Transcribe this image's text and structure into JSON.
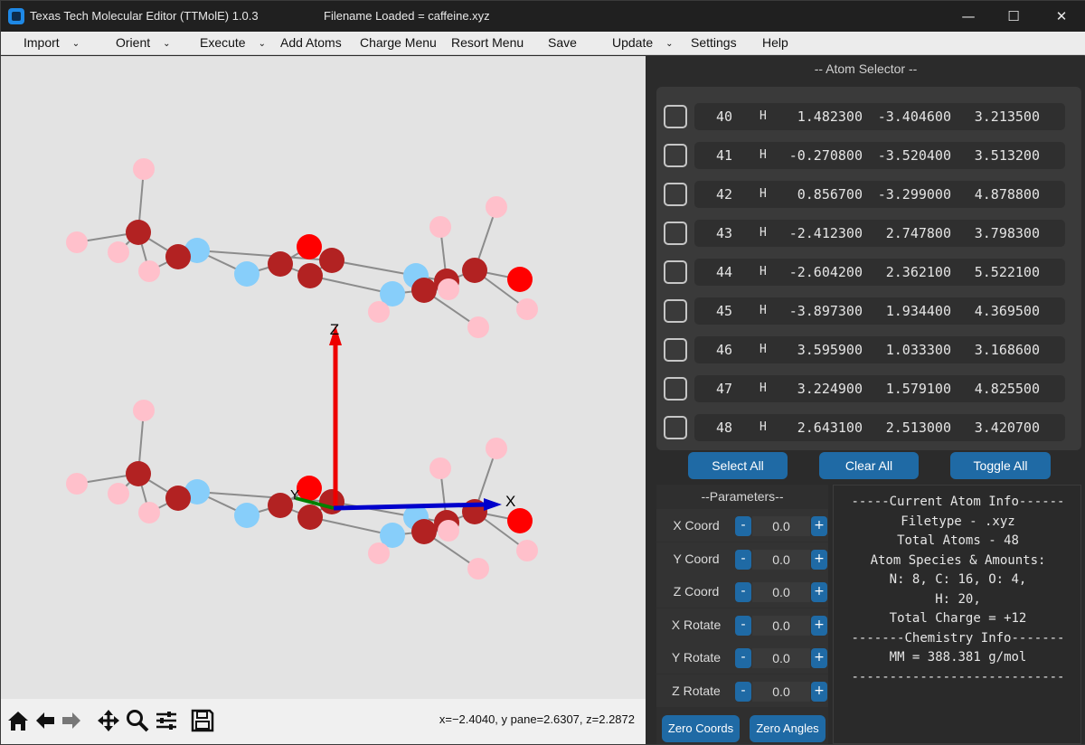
{
  "window": {
    "title": "Texas Tech Molecular Editor (TTMolE) 1.0.3",
    "filename": "Filename Loaded = caffeine.xyz",
    "controls": [
      "—",
      "☐",
      "✕"
    ]
  },
  "menu": [
    {
      "label": "Import",
      "caret": true
    },
    {
      "label": "Orient",
      "caret": true
    },
    {
      "label": "Execute",
      "caret": true
    },
    {
      "label": "Add Atoms",
      "caret": false
    },
    {
      "label": "Charge Menu",
      "caret": false
    },
    {
      "label": "Resort Menu",
      "caret": false
    },
    {
      "label": "Save",
      "caret": false
    },
    {
      "label": "Update",
      "caret": true
    },
    {
      "label": "Settings",
      "caret": false
    },
    {
      "label": "Help",
      "caret": false
    }
  ],
  "plot": {
    "axes": {
      "x": "X",
      "y": "Y",
      "z": "Z"
    },
    "readout": "x=−2.4040, y pane=2.6307, z=2.2872",
    "colors": {
      "N": "#87cefa",
      "C": "#b22222",
      "O": "#ff0000",
      "H": "#ffc0cb",
      "bond": "#8c8c8c",
      "x_axis": "#0000cc",
      "z_axis": "#ee0000",
      "y_axis": "#008000"
    },
    "tools": [
      "home-icon",
      "back-arrow-icon",
      "forward-arrow-icon",
      "pan-icon",
      "zoom-icon",
      "configure-subplots-icon",
      "save-icon"
    ]
  },
  "selector": {
    "title": "-- Atom Selector --",
    "atoms": [
      {
        "index": "40",
        "element": "H",
        "x": "1.482300",
        "y": "-3.404600",
        "z": "3.213500"
      },
      {
        "index": "41",
        "element": "H",
        "x": "-0.270800",
        "y": "-3.520400",
        "z": "3.513200"
      },
      {
        "index": "42",
        "element": "H",
        "x": "0.856700",
        "y": "-3.299000",
        "z": "4.878800"
      },
      {
        "index": "43",
        "element": "H",
        "x": "-2.412300",
        "y": "2.747800",
        "z": "3.798300"
      },
      {
        "index": "44",
        "element": "H",
        "x": "-2.604200",
        "y": "2.362100",
        "z": "5.522100"
      },
      {
        "index": "45",
        "element": "H",
        "x": "-3.897300",
        "y": "1.934400",
        "z": "4.369500"
      },
      {
        "index": "46",
        "element": "H",
        "x": "3.595900",
        "y": "1.033300",
        "z": "3.168600"
      },
      {
        "index": "47",
        "element": "H",
        "x": "3.224900",
        "y": "1.579100",
        "z": "4.825500"
      },
      {
        "index": "48",
        "element": "H",
        "x": "2.643100",
        "y": "2.513000",
        "z": "3.420700"
      }
    ],
    "buttons": {
      "select_all": "Select All",
      "clear_all": "Clear All",
      "toggle_all": "Toggle All"
    }
  },
  "parameters": {
    "title": "--Parameters--",
    "rows": [
      {
        "label": "X Coord",
        "value": "0.0"
      },
      {
        "label": "Y Coord",
        "value": "0.0"
      },
      {
        "label": "Z Coord",
        "value": "0.0"
      },
      {
        "label": "X Rotate",
        "value": "0.0"
      },
      {
        "label": "Y Rotate",
        "value": "0.0"
      },
      {
        "label": "Z Rotate",
        "value": "0.0"
      }
    ],
    "minus": "-",
    "plus": "+",
    "zero_coords": "Zero Coords",
    "zero_angles": "Zero Angles"
  },
  "info": {
    "lines": [
      "-----Current Atom Info------",
      "Filetype - .xyz",
      "Total Atoms - 48",
      "Atom Species & Amounts:",
      "N: 8, C: 16, O: 4,",
      "H: 20,",
      "Total Charge = +12",
      "-------Chemistry Info-------",
      "MM = 388.381 g/mol",
      "----------------------------"
    ]
  }
}
